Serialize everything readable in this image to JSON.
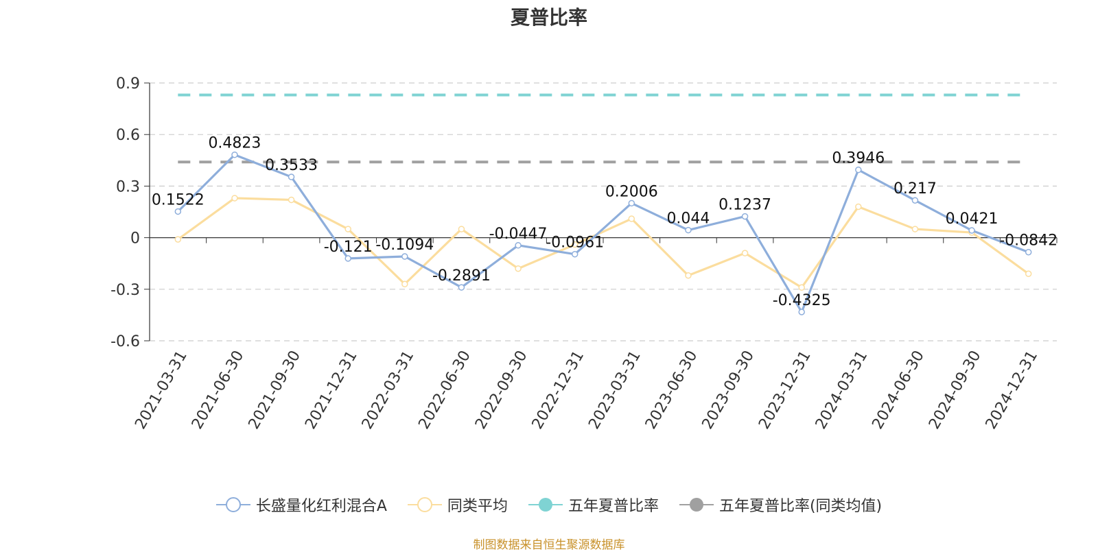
{
  "chart_data": {
    "type": "line",
    "title": "夏普比率",
    "categories": [
      "2021-03-31",
      "2021-06-30",
      "2021-09-30",
      "2021-12-31",
      "2022-03-31",
      "2022-06-30",
      "2022-09-30",
      "2022-12-31",
      "2023-03-31",
      "2023-06-30",
      "2023-09-30",
      "2023-12-31",
      "2024-03-31",
      "2024-06-30",
      "2024-09-30",
      "2024-12-31"
    ],
    "ylim": [
      -0.6,
      0.9
    ],
    "yticks": [
      "0.9",
      "0.6",
      "0.3",
      "0",
      "-0.3",
      "-0.6"
    ],
    "grid": true,
    "legend_position": "bottom",
    "series": [
      {
        "name": "长盛量化红利混合A",
        "color": "#8eaedb",
        "values": [
          0.1522,
          0.4823,
          0.3533,
          -0.121,
          -0.1094,
          -0.2891,
          -0.0447,
          -0.0961,
          0.2006,
          0.044,
          0.1237,
          -0.4325,
          0.3946,
          0.217,
          0.0421,
          -0.0842
        ],
        "labels": [
          "0.1522",
          "0.4823",
          "0.3533",
          "-0.121",
          "-0.1094",
          "-0.2891",
          "-0.0447",
          "-0.0961",
          "0.2006",
          "0.044",
          "0.1237",
          "-0.4325",
          "0.3946",
          "0.217",
          "0.0421",
          "-0.0842"
        ]
      },
      {
        "name": "同类平均",
        "color": "#fbdd9e",
        "values": [
          -0.01,
          0.23,
          0.22,
          0.05,
          -0.27,
          0.05,
          -0.18,
          -0.04,
          0.11,
          -0.22,
          -0.09,
          -0.29,
          0.18,
          0.05,
          0.03,
          -0.21
        ]
      },
      {
        "name": "五年夏普比率",
        "color": "#7fd3d3",
        "constant": 0.83,
        "dashed": true
      },
      {
        "name": "五年夏普比率(同类均值)",
        "color": "#a0a0a0",
        "constant": 0.44,
        "dashed": true
      }
    ]
  },
  "footer": "制图数据来自恒生聚源数据库"
}
